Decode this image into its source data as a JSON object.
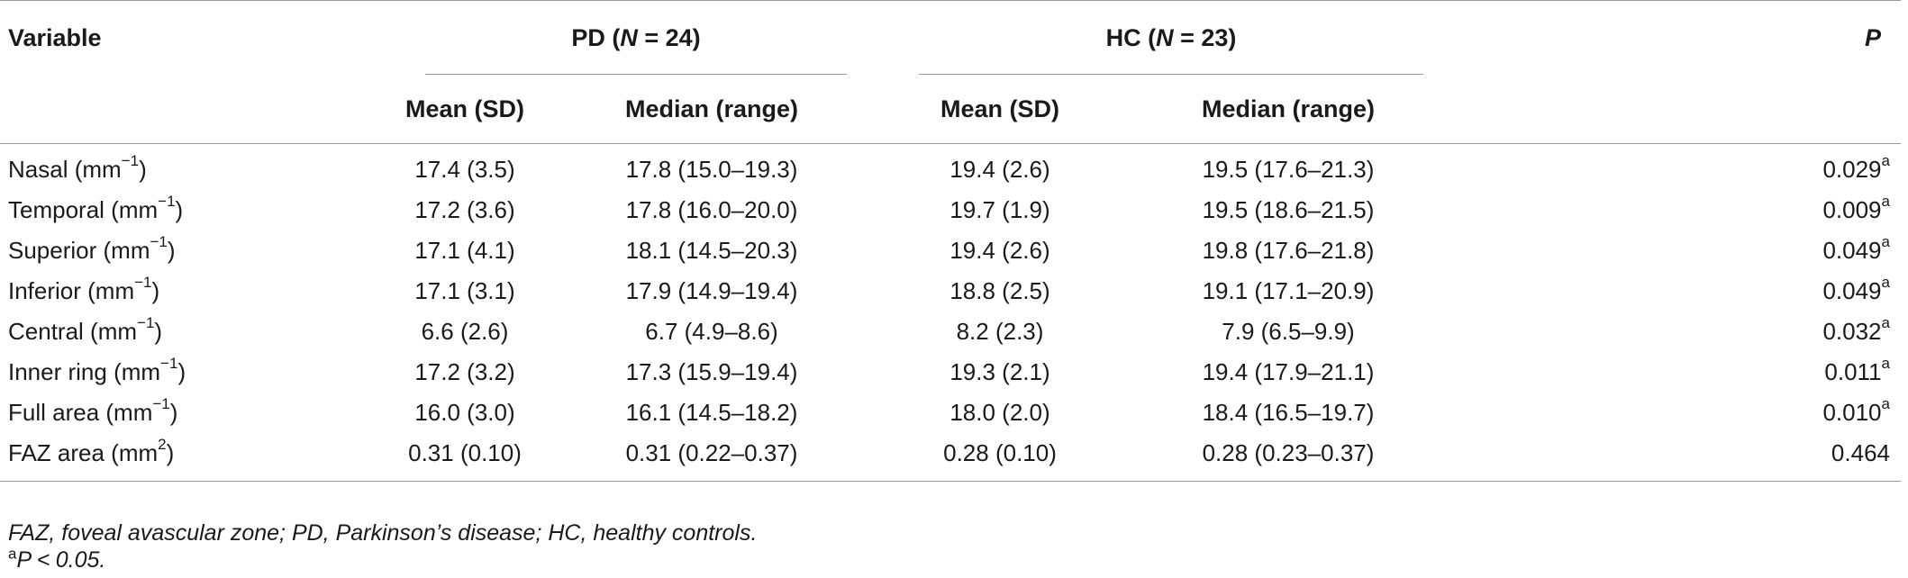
{
  "table": {
    "header": {
      "variable": "Variable",
      "pd_group": {
        "prefix": "PD (",
        "n_label": "N",
        "n_value": " = 24",
        "suffix": ")"
      },
      "hc_group": {
        "prefix": "HC (",
        "n_label": "N",
        "n_value": " = 23",
        "suffix": ")"
      },
      "p": "P",
      "sub": {
        "pd_mean": "Mean (SD)",
        "pd_median": "Median (range)",
        "hc_mean": "Mean (SD)",
        "hc_median": "Median (range)"
      }
    },
    "rows": [
      {
        "label": "Nasal (mm",
        "unit_sup": "−1",
        "label_end": ")",
        "pd_mean": "17.4 (3.5)",
        "pd_median": "17.8 (15.0–19.3)",
        "hc_mean": "19.4 (2.6)",
        "hc_median": "19.5 (17.6–21.3)",
        "p": "0.029",
        "p_sup": "a"
      },
      {
        "label": "Temporal (mm",
        "unit_sup": "−1",
        "label_end": ")",
        "pd_mean": "17.2 (3.6)",
        "pd_median": "17.8 (16.0–20.0)",
        "hc_mean": "19.7 (1.9)",
        "hc_median": "19.5 (18.6–21.5)",
        "p": "0.009",
        "p_sup": "a"
      },
      {
        "label": "Superior (mm",
        "unit_sup": "−1",
        "label_end": ")",
        "pd_mean": "17.1 (4.1)",
        "pd_median": "18.1 (14.5–20.3)",
        "hc_mean": "19.4 (2.6)",
        "hc_median": "19.8 (17.6–21.8)",
        "p": "0.049",
        "p_sup": "a"
      },
      {
        "label": "Inferior (mm",
        "unit_sup": "−1",
        "label_end": ")",
        "pd_mean": "17.1 (3.1)",
        "pd_median": "17.9 (14.9–19.4)",
        "hc_mean": "18.8 (2.5)",
        "hc_median": "19.1 (17.1–20.9)",
        "p": "0.049",
        "p_sup": "a"
      },
      {
        "label": "Central (mm",
        "unit_sup": "−1",
        "label_end": ")",
        "pd_mean": "6.6 (2.6)",
        "pd_median": "6.7 (4.9–8.6)",
        "hc_mean": "8.2 (2.3)",
        "hc_median": "7.9 (6.5–9.9)",
        "p": "0.032",
        "p_sup": "a"
      },
      {
        "label": "Inner ring (mm",
        "unit_sup": "−1",
        "label_end": ")",
        "pd_mean": "17.2 (3.2)",
        "pd_median": "17.3 (15.9–19.4)",
        "hc_mean": "19.3 (2.1)",
        "hc_median": "19.4 (17.9–21.1)",
        "p": "0.011",
        "p_sup": "a"
      },
      {
        "label": "Full area (mm",
        "unit_sup": "−1",
        "label_end": ")",
        "pd_mean": "16.0 (3.0)",
        "pd_median": "16.1 (14.5–18.2)",
        "hc_mean": "18.0 (2.0)",
        "hc_median": "18.4 (16.5–19.7)",
        "p": "0.010",
        "p_sup": "a"
      },
      {
        "label": "FAZ area (mm",
        "unit_sup": "2",
        "label_end": ")",
        "pd_mean": "0.31 (0.10)",
        "pd_median": "0.31 (0.22–0.37)",
        "hc_mean": "0.28 (0.10)",
        "hc_median": "0.28 (0.23–0.37)",
        "p": "0.464",
        "p_sup": ""
      }
    ]
  },
  "footnotes": {
    "abbreviations": "FAZ, foveal avascular zone; PD, Parkinson’s disease; HC, healthy controls.",
    "significance": {
      "sup": "a",
      "symbol": "P",
      "operator": "<",
      "value": "0.05."
    }
  }
}
